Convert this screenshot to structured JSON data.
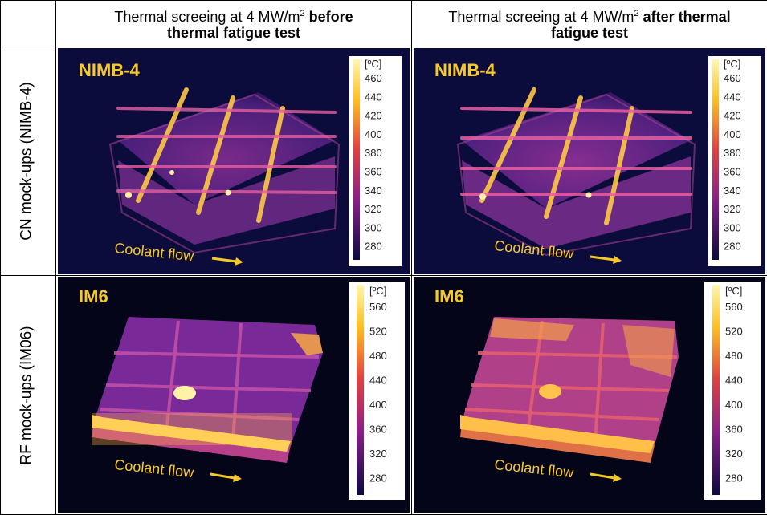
{
  "header": {
    "col1_prefix": "Thermal screeing at 4 MW/m",
    "col1_sup": "2",
    "col1_bold_1": " before",
    "col1_bold_2": "thermal fatigue test",
    "col2_prefix": "Thermal screeing at 4 MW/m",
    "col2_sup": "2",
    "col2_bold_1": " after thermal",
    "col2_bold_2": "fatigue test"
  },
  "rows": {
    "row1_label": "CN mock-ups (NIMB-4)",
    "row2_label": "RF mock-ups (IM06)"
  },
  "panels": {
    "p1": {
      "title": "NIMB-4",
      "flow": "Coolant flow",
      "unit": "[ºC]",
      "ticks": [
        "460",
        "440",
        "420",
        "400",
        "380",
        "360",
        "340",
        "320",
        "300",
        "280"
      ]
    },
    "p2": {
      "title": "NIMB-4",
      "flow": "Coolant flow",
      "unit": "[ºC]",
      "ticks": [
        "460",
        "440",
        "420",
        "400",
        "380",
        "360",
        "340",
        "320",
        "300",
        "280"
      ]
    },
    "p3": {
      "title": "IM6",
      "flow": "Coolant flow",
      "unit": "[ºC]",
      "ticks": [
        "560",
        "520",
        "480",
        "440",
        "400",
        "360",
        "320",
        "280"
      ]
    },
    "p4": {
      "title": "IM6",
      "flow": "Coolant flow",
      "unit": "[ºC]",
      "ticks": [
        "560",
        "520",
        "480",
        "440",
        "400",
        "360",
        "320",
        "280"
      ]
    }
  },
  "colors": {
    "flow_text": "#f7c928",
    "background_cold": "#0a0a3a",
    "hot": "#ffd23a"
  }
}
